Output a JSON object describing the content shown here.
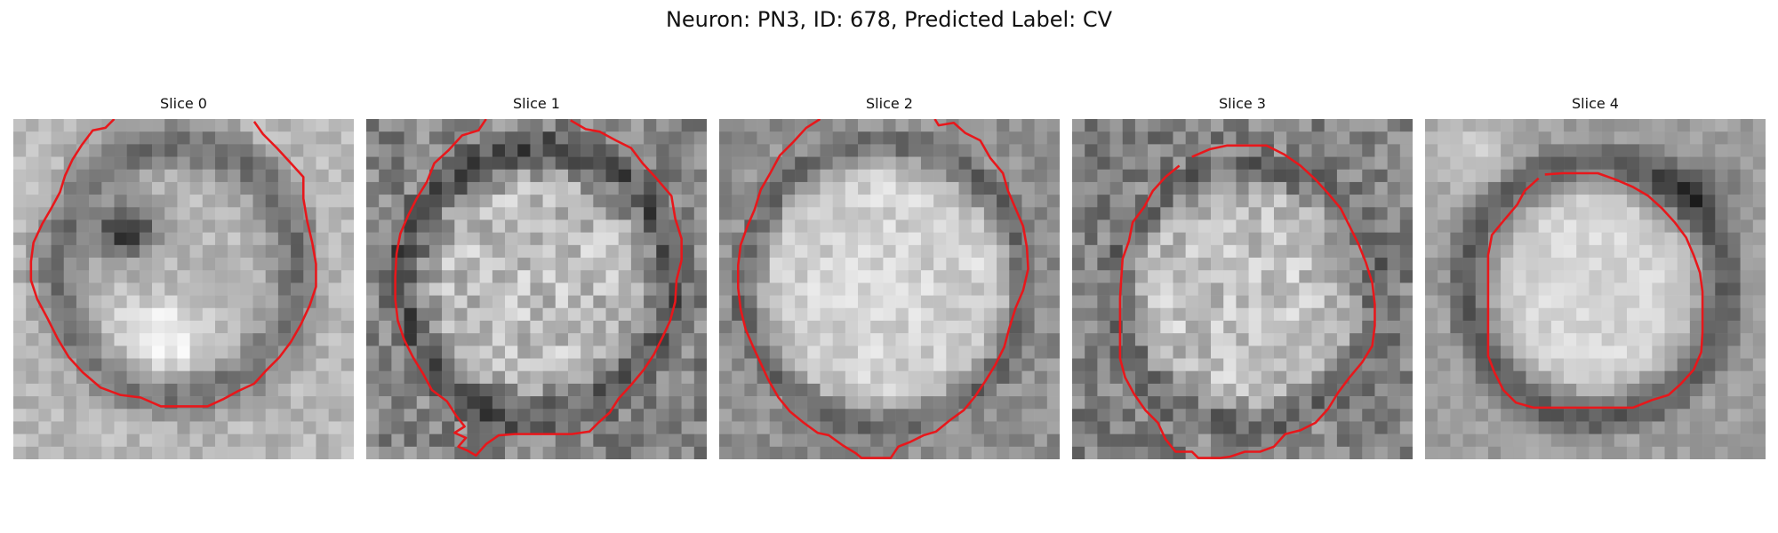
{
  "figure": {
    "title": "Neuron: PN3, ID: 678, Predicted Label: CV"
  },
  "contour_color": "#e8171b",
  "colormap": "grayscale",
  "panels": [
    {
      "title": "Slice 0",
      "contour": [
        [
          7.5,
          -0.5
        ],
        [
          6.8,
          0.2
        ],
        [
          5.8,
          0.4
        ],
        [
          4.9,
          1.6
        ],
        [
          4.2,
          2.7
        ],
        [
          3.6,
          4.0
        ],
        [
          3.2,
          5.3
        ],
        [
          2.5,
          6.6
        ],
        [
          1.8,
          7.8
        ],
        [
          1.1,
          9.3
        ],
        [
          0.9,
          10.8
        ],
        [
          0.9,
          12.3
        ],
        [
          1.4,
          13.8
        ],
        [
          2.2,
          15.3
        ],
        [
          3.0,
          16.9
        ],
        [
          3.9,
          18.4
        ],
        [
          5.0,
          19.6
        ],
        [
          6.4,
          20.8
        ],
        [
          8.0,
          21.4
        ],
        [
          9.6,
          21.6
        ],
        [
          11.2,
          22.3
        ],
        [
          13.0,
          22.3
        ],
        [
          14.9,
          22.3
        ],
        [
          16.2,
          21.7
        ],
        [
          17.3,
          21.1
        ],
        [
          18.6,
          20.5
        ],
        [
          19.6,
          19.4
        ],
        [
          20.6,
          18.4
        ],
        [
          21.5,
          17.2
        ],
        [
          22.3,
          15.8
        ],
        [
          23.0,
          14.3
        ],
        [
          23.5,
          12.8
        ],
        [
          23.5,
          11.0
        ],
        [
          23.2,
          9.3
        ],
        [
          22.8,
          7.6
        ],
        [
          22.5,
          5.8
        ],
        [
          22.5,
          4.1
        ],
        [
          21.5,
          3.0
        ],
        [
          20.4,
          1.8
        ],
        [
          19.3,
          0.7
        ],
        [
          18.6,
          -0.3
        ]
      ]
    },
    {
      "title": "Slice 1",
      "contour": [
        [
          9.0,
          -0.5
        ],
        [
          8.4,
          0.4
        ],
        [
          7.1,
          0.8
        ],
        [
          6.0,
          2.0
        ],
        [
          4.9,
          3.0
        ],
        [
          4.3,
          4.5
        ],
        [
          3.5,
          5.8
        ],
        [
          2.8,
          7.2
        ],
        [
          2.2,
          8.6
        ],
        [
          1.9,
          10.2
        ],
        [
          1.8,
          12.0
        ],
        [
          1.8,
          13.8
        ],
        [
          2.0,
          15.5
        ],
        [
          2.5,
          17.0
        ],
        [
          3.2,
          18.4
        ],
        [
          4.0,
          19.7
        ],
        [
          4.7,
          21.0
        ],
        [
          5.9,
          21.9
        ],
        [
          6.6,
          23.0
        ],
        [
          7.3,
          23.9
        ],
        [
          6.5,
          24.4
        ],
        [
          7.4,
          24.8
        ],
        [
          6.8,
          25.5
        ],
        [
          7.5,
          25.8
        ],
        [
          8.2,
          26.2
        ],
        [
          9.0,
          25.3
        ],
        [
          10.0,
          24.6
        ],
        [
          11.3,
          24.5
        ],
        [
          12.8,
          24.5
        ],
        [
          14.3,
          24.5
        ],
        [
          15.8,
          24.5
        ],
        [
          17.2,
          24.3
        ],
        [
          17.9,
          23.6
        ],
        [
          18.8,
          22.8
        ],
        [
          19.5,
          21.7
        ],
        [
          20.5,
          20.6
        ],
        [
          21.5,
          19.4
        ],
        [
          22.3,
          18.2
        ],
        [
          23.0,
          16.8
        ],
        [
          23.6,
          15.5
        ],
        [
          24.0,
          14.0
        ],
        [
          24.1,
          12.3
        ],
        [
          24.5,
          10.7
        ],
        [
          24.5,
          9.0
        ],
        [
          24.0,
          7.4
        ],
        [
          23.7,
          5.6
        ],
        [
          22.5,
          4.2
        ],
        [
          21.4,
          3.0
        ],
        [
          20.5,
          1.8
        ],
        [
          19.3,
          1.2
        ],
        [
          18.0,
          0.5
        ],
        [
          16.9,
          0.3
        ],
        [
          15.7,
          -0.4
        ]
      ]
    },
    {
      "title": "Slice 2",
      "contour": [
        [
          7.5,
          -0.5
        ],
        [
          6.4,
          0.2
        ],
        [
          5.3,
          1.4
        ],
        [
          4.3,
          2.4
        ],
        [
          3.6,
          3.7
        ],
        [
          2.8,
          5.1
        ],
        [
          2.3,
          6.7
        ],
        [
          1.7,
          8.1
        ],
        [
          1.2,
          9.5
        ],
        [
          1.0,
          11.1
        ],
        [
          1.0,
          12.9
        ],
        [
          1.2,
          14.6
        ],
        [
          1.6,
          16.2
        ],
        [
          2.2,
          17.6
        ],
        [
          2.8,
          18.9
        ],
        [
          3.4,
          20.2
        ],
        [
          4.2,
          21.6
        ],
        [
          5.1,
          22.7
        ],
        [
          6.2,
          23.6
        ],
        [
          7.3,
          24.4
        ],
        [
          8.2,
          24.6
        ],
        [
          9.3,
          25.4
        ],
        [
          10.3,
          26.0
        ],
        [
          10.8,
          26.4
        ],
        [
          13.1,
          26.4
        ],
        [
          13.7,
          25.5
        ],
        [
          14.7,
          25.1
        ],
        [
          15.7,
          24.6
        ],
        [
          16.7,
          24.3
        ],
        [
          17.8,
          23.4
        ],
        [
          18.9,
          22.6
        ],
        [
          19.8,
          21.5
        ],
        [
          20.6,
          20.3
        ],
        [
          21.4,
          19.0
        ],
        [
          22.1,
          17.6
        ],
        [
          22.5,
          16.1
        ],
        [
          23.0,
          14.5
        ],
        [
          23.6,
          13.1
        ],
        [
          24.0,
          11.4
        ],
        [
          23.9,
          9.7
        ],
        [
          23.6,
          8.0
        ],
        [
          23.0,
          6.6
        ],
        [
          22.4,
          5.2
        ],
        [
          22.0,
          3.8
        ],
        [
          21.0,
          2.6
        ],
        [
          20.2,
          1.2
        ],
        [
          19.0,
          0.6
        ],
        [
          18.1,
          -0.2
        ],
        [
          16.9,
          0.0
        ],
        [
          16.6,
          -0.5
        ]
      ]
    },
    {
      "title": "Slice 3",
      "contour": [
        [
          9.0,
          2.5
        ],
        [
          10.4,
          1.9
        ],
        [
          11.8,
          1.6
        ],
        [
          13.3,
          1.6
        ],
        [
          14.9,
          1.6
        ],
        [
          16.3,
          2.3
        ],
        [
          17.6,
          3.2
        ],
        [
          18.8,
          4.3
        ],
        [
          19.8,
          5.4
        ],
        [
          20.8,
          6.6
        ],
        [
          21.5,
          8.0
        ],
        [
          22.2,
          9.4
        ],
        [
          22.8,
          10.9
        ],
        [
          23.3,
          12.5
        ],
        [
          23.5,
          14.2
        ],
        [
          23.5,
          15.9
        ],
        [
          23.3,
          17.5
        ],
        [
          22.5,
          18.8
        ],
        [
          21.5,
          20.0
        ],
        [
          20.6,
          21.2
        ],
        [
          19.8,
          22.5
        ],
        [
          18.8,
          23.6
        ],
        [
          17.6,
          24.2
        ],
        [
          16.4,
          24.5
        ],
        [
          15.5,
          25.5
        ],
        [
          14.4,
          25.9
        ],
        [
          13.2,
          25.9
        ],
        [
          12.0,
          26.3
        ],
        [
          11.2,
          26.4
        ],
        [
          9.5,
          26.4
        ],
        [
          9.0,
          25.9
        ],
        [
          7.7,
          25.9
        ],
        [
          6.9,
          24.9
        ],
        [
          6.3,
          23.6
        ],
        [
          5.3,
          22.6
        ],
        [
          4.4,
          21.3
        ],
        [
          3.7,
          20.0
        ],
        [
          3.3,
          18.5
        ],
        [
          3.3,
          16.9
        ],
        [
          3.3,
          15.3
        ],
        [
          3.3,
          13.7
        ],
        [
          3.4,
          12.1
        ],
        [
          3.5,
          10.6
        ],
        [
          4.0,
          9.2
        ],
        [
          4.3,
          7.7
        ],
        [
          5.2,
          6.5
        ],
        [
          5.9,
          5.2
        ],
        [
          6.9,
          4.1
        ],
        [
          8.0,
          3.2
        ]
      ]
    },
    {
      "title": "Slice 4",
      "contour": [
        [
          9.0,
          3.9
        ],
        [
          10.4,
          3.8
        ],
        [
          11.8,
          3.8
        ],
        [
          13.2,
          3.8
        ],
        [
          14.6,
          4.3
        ],
        [
          16.0,
          4.9
        ],
        [
          17.2,
          5.6
        ],
        [
          18.3,
          6.6
        ],
        [
          19.3,
          7.7
        ],
        [
          20.2,
          8.9
        ],
        [
          20.8,
          10.3
        ],
        [
          21.3,
          11.7
        ],
        [
          21.5,
          13.2
        ],
        [
          21.5,
          14.8
        ],
        [
          21.5,
          16.4
        ],
        [
          21.4,
          18.0
        ],
        [
          20.8,
          19.4
        ],
        [
          19.8,
          20.5
        ],
        [
          18.8,
          21.4
        ],
        [
          17.5,
          21.8
        ],
        [
          16.0,
          22.4
        ],
        [
          14.5,
          22.4
        ],
        [
          12.9,
          22.4
        ],
        [
          11.3,
          22.4
        ],
        [
          9.7,
          22.4
        ],
        [
          8.1,
          22.4
        ],
        [
          6.7,
          22.0
        ],
        [
          5.7,
          21.0
        ],
        [
          5.0,
          19.6
        ],
        [
          4.5,
          18.3
        ],
        [
          4.5,
          16.7
        ],
        [
          4.5,
          15.1
        ],
        [
          4.5,
          13.5
        ],
        [
          4.5,
          11.9
        ],
        [
          4.5,
          10.3
        ],
        [
          4.8,
          8.7
        ],
        [
          5.7,
          7.6
        ],
        [
          6.8,
          6.3
        ],
        [
          7.4,
          5.2
        ],
        [
          8.5,
          4.2
        ]
      ]
    }
  ]
}
